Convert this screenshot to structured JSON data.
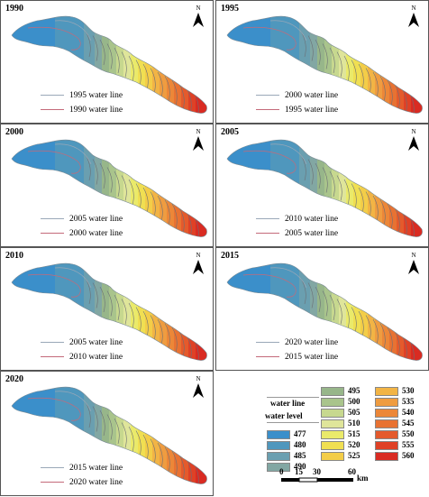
{
  "panels": [
    {
      "year": "1990",
      "line_a": "1995 water line",
      "line_b": "1990 water line"
    },
    {
      "year": "1995",
      "line_a": "2000 water line",
      "line_b": "1995 water line"
    },
    {
      "year": "2000",
      "line_a": "2005 water line",
      "line_b": "2000 water line"
    },
    {
      "year": "2005",
      "line_a": "2010 water line",
      "line_b": "2005 water line"
    },
    {
      "year": "2010",
      "line_a": "2005 water line",
      "line_b": "2010 water line"
    },
    {
      "year": "2015",
      "line_a": "2020 water line",
      "line_b": "2015 water line"
    },
    {
      "year": "2020",
      "line_a": "2015 water line",
      "line_b": "2020 water line"
    }
  ],
  "north_label": "N",
  "legend": {
    "header_line": "water line",
    "header_level": "water level",
    "levels": [
      {
        "value": "477",
        "color": "#3b8fca"
      },
      {
        "value": "480",
        "color": "#4f97bd"
      },
      {
        "value": "485",
        "color": "#6a9fb0"
      },
      {
        "value": "490",
        "color": "#82a7a3"
      },
      {
        "value": "495",
        "color": "#97b68a"
      },
      {
        "value": "500",
        "color": "#a9c48c"
      },
      {
        "value": "505",
        "color": "#c7d88f"
      },
      {
        "value": "510",
        "color": "#dfe59a"
      },
      {
        "value": "515",
        "color": "#eaea6a"
      },
      {
        "value": "520",
        "color": "#f0df52"
      },
      {
        "value": "525",
        "color": "#f3cd48"
      },
      {
        "value": "530",
        "color": "#f2b445"
      },
      {
        "value": "535",
        "color": "#ef9c40"
      },
      {
        "value": "540",
        "color": "#ec8738"
      },
      {
        "value": "545",
        "color": "#e87232"
      },
      {
        "value": "550",
        "color": "#e45a2c"
      },
      {
        "value": "555",
        "color": "#df4126"
      },
      {
        "value": "560",
        "color": "#d92b22"
      }
    ]
  },
  "scale": {
    "ticks": [
      "0",
      "15",
      "30",
      "60"
    ],
    "unit": "km"
  },
  "colors": {
    "line_a": "#9aa8b8",
    "line_b": "#c46a7a",
    "frame": "#555555"
  }
}
